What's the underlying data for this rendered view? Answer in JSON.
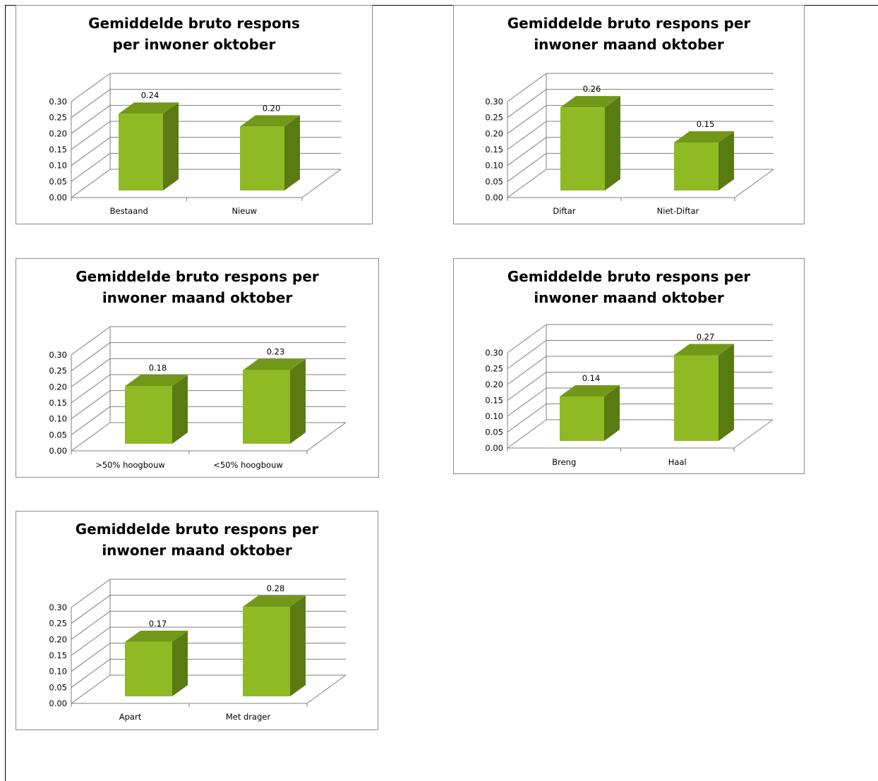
{
  "colors": {
    "bar_front": "#8fba23",
    "bar_side": "#5a7a12",
    "bar_top": "#72981a",
    "grid": "#7f7f7f"
  },
  "chart_data": [
    {
      "type": "bar",
      "title_lines": [
        "Gemiddelde bruto respons",
        "per inwoner oktober"
      ],
      "categories": [
        "Bestaand",
        "Nieuw"
      ],
      "values": [
        0.24,
        0.2
      ],
      "labels": [
        "0.24",
        "0.20"
      ],
      "yticks": [
        "0.00",
        "0.05",
        "0.10",
        "0.15",
        "0.20",
        "0.25",
        "0.30"
      ],
      "ylim": [
        0,
        0.3
      ],
      "grid": true,
      "legend": "none"
    },
    {
      "type": "bar",
      "title_lines": [
        "Gemiddelde bruto respons per",
        "inwoner maand oktober"
      ],
      "categories": [
        "Diftar",
        "Niet-Diftar"
      ],
      "values": [
        0.26,
        0.15
      ],
      "labels": [
        "0.26",
        "0.15"
      ],
      "yticks": [
        "0.00",
        "0.05",
        "0.10",
        "0.15",
        "0.20",
        "0.25",
        "0.30"
      ],
      "ylim": [
        0,
        0.3
      ],
      "grid": true,
      "legend": "none"
    },
    {
      "type": "bar",
      "title_lines": [
        "Gemiddelde bruto respons per",
        "inwoner maand oktober"
      ],
      "categories": [
        ">50% hoogbouw",
        "<50% hoogbouw"
      ],
      "values": [
        0.18,
        0.23
      ],
      "labels": [
        "0.18",
        "0.23"
      ],
      "yticks": [
        "0.00",
        "0.05",
        "0.10",
        "0.15",
        "0.20",
        "0.25",
        "0.30"
      ],
      "ylim": [
        0,
        0.3
      ],
      "grid": true,
      "legend": "none"
    },
    {
      "type": "bar",
      "title_lines": [
        "Gemiddelde bruto respons per",
        "inwoner maand oktober"
      ],
      "categories": [
        "Breng",
        "Haal"
      ],
      "values": [
        0.14,
        0.27
      ],
      "labels": [
        "0.14",
        "0.27"
      ],
      "yticks": [
        "0.00",
        "0.05",
        "0.10",
        "0.15",
        "0.20",
        "0.25",
        "0.30"
      ],
      "ylim": [
        0,
        0.3
      ],
      "grid": true,
      "legend": "none"
    },
    {
      "type": "bar",
      "title_lines": [
        "Gemiddelde bruto respons per",
        "inwoner maand oktober"
      ],
      "categories": [
        "Apart",
        "Met drager"
      ],
      "values": [
        0.17,
        0.28
      ],
      "labels": [
        "0.17",
        "0.28"
      ],
      "yticks": [
        "0.00",
        "0.05",
        "0.10",
        "0.15",
        "0.20",
        "0.25",
        "0.30"
      ],
      "ylim": [
        0,
        0.3
      ],
      "grid": true,
      "legend": "none"
    }
  ]
}
